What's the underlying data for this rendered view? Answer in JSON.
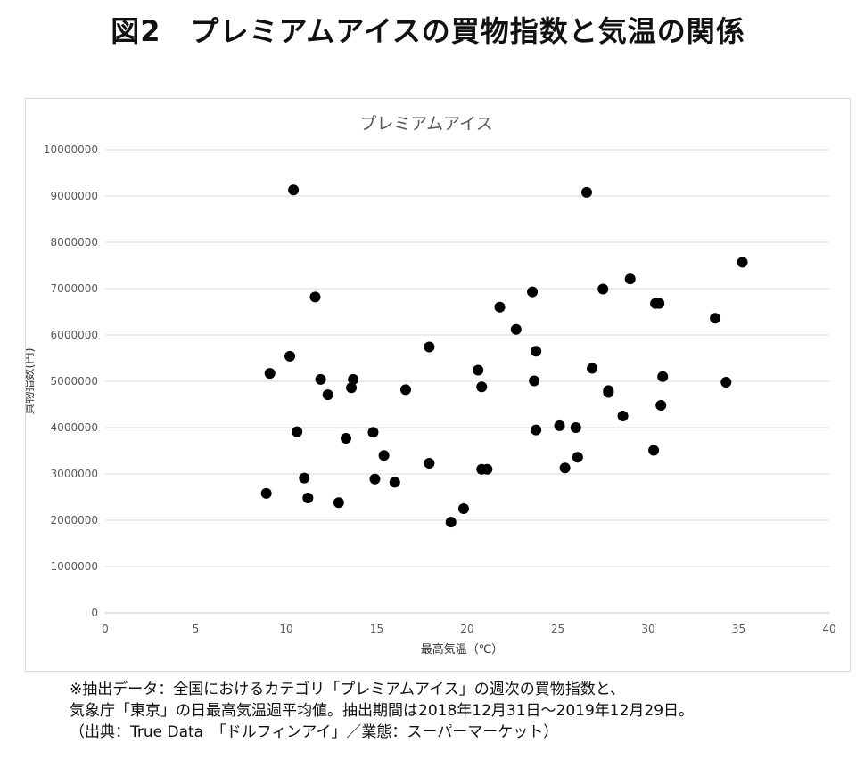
{
  "figure_title": "図2　プレミアムアイスの買物指数と気温の関係",
  "notes": [
    "※抽出データ：全国におけるカテゴリ「プレミアムアイス」の週次の買物指数と、",
    "気象庁「東京」の日最高気温週平均値。抽出期間は2018年12月31日〜2019年12月29日。",
    "（出典：True Data　「ドルフィンアイ」／業態：スーパーマーケット）"
  ],
  "chart_data": {
    "type": "scatter",
    "title": "プレミアムアイス",
    "xlabel": "最高気温（℃）",
    "ylabel": "買物指数(円)",
    "xlim": [
      0,
      40
    ],
    "ylim": [
      0,
      10000000
    ],
    "xticks": [
      0,
      5,
      10,
      15,
      20,
      25,
      30,
      35,
      40
    ],
    "yticks": [
      0,
      1000000,
      2000000,
      3000000,
      4000000,
      5000000,
      6000000,
      7000000,
      8000000,
      9000000,
      10000000
    ],
    "grid": "horizontal",
    "marker_color": "#000000",
    "points": [
      [
        10.4,
        9130000
      ],
      [
        26.6,
        9080000
      ],
      [
        35.2,
        7570000
      ],
      [
        29.0,
        7210000
      ],
      [
        27.5,
        6990000
      ],
      [
        23.6,
        6930000
      ],
      [
        11.6,
        6820000
      ],
      [
        30.4,
        6680000
      ],
      [
        30.6,
        6680000
      ],
      [
        21.8,
        6600000
      ],
      [
        33.7,
        6360000
      ],
      [
        22.7,
        6120000
      ],
      [
        17.9,
        5740000
      ],
      [
        23.8,
        5650000
      ],
      [
        10.2,
        5540000
      ],
      [
        20.6,
        5240000
      ],
      [
        26.9,
        5280000
      ],
      [
        9.1,
        5170000
      ],
      [
        30.8,
        5100000
      ],
      [
        11.9,
        5040000
      ],
      [
        13.7,
        5040000
      ],
      [
        23.7,
        5010000
      ],
      [
        34.3,
        4980000
      ],
      [
        20.8,
        4880000
      ],
      [
        13.6,
        4860000
      ],
      [
        16.6,
        4820000
      ],
      [
        27.8,
        4800000
      ],
      [
        27.8,
        4760000
      ],
      [
        12.3,
        4710000
      ],
      [
        30.7,
        4480000
      ],
      [
        28.6,
        4250000
      ],
      [
        25.1,
        4040000
      ],
      [
        26.0,
        4000000
      ],
      [
        23.8,
        3950000
      ],
      [
        10.6,
        3910000
      ],
      [
        14.8,
        3900000
      ],
      [
        13.3,
        3770000
      ],
      [
        30.3,
        3510000
      ],
      [
        15.4,
        3400000
      ],
      [
        26.1,
        3360000
      ],
      [
        17.9,
        3230000
      ],
      [
        25.4,
        3130000
      ],
      [
        20.8,
        3100000
      ],
      [
        21.1,
        3100000
      ],
      [
        11.0,
        2910000
      ],
      [
        14.9,
        2890000
      ],
      [
        16.0,
        2820000
      ],
      [
        8.9,
        2580000
      ],
      [
        11.2,
        2480000
      ],
      [
        12.9,
        2380000
      ],
      [
        19.8,
        2250000
      ],
      [
        19.1,
        1960000
      ]
    ]
  }
}
